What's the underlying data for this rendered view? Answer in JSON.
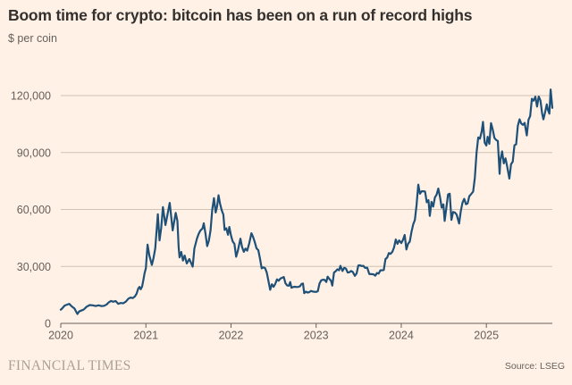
{
  "header": {
    "title": "Boom time for crypto: bitcoin has been on a run of record highs",
    "subtitle": "$ per coin"
  },
  "footer": {
    "brand": "FINANCIAL TIMES",
    "source": "Source: LSEG"
  },
  "colors": {
    "background": "#FFF1E5",
    "line": "#1F5078",
    "grid": "#CFC3B4",
    "axis": "#66605C",
    "text_primary": "#33302E",
    "text_secondary": "#66605C",
    "brand": "#A9A195"
  },
  "chart_data": {
    "type": "line",
    "title": "Boom time for crypto: bitcoin has been on a run of record highs",
    "ylabel": "$ per coin",
    "source": "LSEG",
    "grid": true,
    "legend": "none",
    "x_axis": {
      "start_year": 2020,
      "end": 5.775,
      "ticks": [
        {
          "t": 0,
          "label": "2020"
        },
        {
          "t": 1,
          "label": "2021"
        },
        {
          "t": 2,
          "label": "2022"
        },
        {
          "t": 3,
          "label": "2023"
        },
        {
          "t": 4,
          "label": "2024"
        },
        {
          "t": 5,
          "label": "2025"
        }
      ]
    },
    "y_axis": {
      "min": 0,
      "max": 120000,
      "ticks": [
        {
          "v": 0,
          "label": "0"
        },
        {
          "v": 30000,
          "label": "30,000"
        },
        {
          "v": 60000,
          "label": "60,000"
        },
        {
          "v": 90000,
          "label": "90,000"
        },
        {
          "v": 120000,
          "label": "120,000"
        }
      ]
    },
    "series": [
      {
        "name": "Bitcoin price, $ per coin",
        "points": [
          [
            0.0,
            7200
          ],
          [
            0.02,
            8050
          ],
          [
            0.045,
            9350
          ],
          [
            0.075,
            9900
          ],
          [
            0.1,
            10250
          ],
          [
            0.13,
            8900
          ],
          [
            0.16,
            7900
          ],
          [
            0.195,
            4950
          ],
          [
            0.215,
            6250
          ],
          [
            0.24,
            6750
          ],
          [
            0.27,
            7300
          ],
          [
            0.305,
            8800
          ],
          [
            0.34,
            9650
          ],
          [
            0.375,
            9500
          ],
          [
            0.41,
            9150
          ],
          [
            0.445,
            9500
          ],
          [
            0.48,
            9100
          ],
          [
            0.51,
            9250
          ],
          [
            0.54,
            10000
          ],
          [
            0.565,
            11100
          ],
          [
            0.59,
            11800
          ],
          [
            0.615,
            11400
          ],
          [
            0.645,
            11750
          ],
          [
            0.675,
            10300
          ],
          [
            0.705,
            10750
          ],
          [
            0.735,
            10600
          ],
          [
            0.765,
            11500
          ],
          [
            0.795,
            13050
          ],
          [
            0.82,
            13600
          ],
          [
            0.845,
            13300
          ],
          [
            0.87,
            14150
          ],
          [
            0.89,
            15600
          ],
          [
            0.91,
            18400
          ],
          [
            0.925,
            19200
          ],
          [
            0.94,
            18000
          ],
          [
            0.955,
            19400
          ],
          [
            0.97,
            22800
          ],
          [
            0.985,
            26500
          ],
          [
            1.0,
            29000
          ],
          [
            1.02,
            41500
          ],
          [
            1.04,
            36000
          ],
          [
            1.07,
            30800
          ],
          [
            1.09,
            34500
          ],
          [
            1.11,
            39500
          ],
          [
            1.14,
            57500
          ],
          [
            1.16,
            43700
          ],
          [
            1.18,
            50400
          ],
          [
            1.2,
            61200
          ],
          [
            1.23,
            51800
          ],
          [
            1.25,
            56300
          ],
          [
            1.28,
            63500
          ],
          [
            1.315,
            49000
          ],
          [
            1.35,
            58200
          ],
          [
            1.37,
            54000
          ],
          [
            1.385,
            40000
          ],
          [
            1.395,
            34800
          ],
          [
            1.415,
            37600
          ],
          [
            1.435,
            33100
          ],
          [
            1.455,
            35700
          ],
          [
            1.48,
            31600
          ],
          [
            1.51,
            33900
          ],
          [
            1.53,
            31900
          ],
          [
            1.55,
            29900
          ],
          [
            1.57,
            39500
          ],
          [
            1.6,
            44700
          ],
          [
            1.62,
            47200
          ],
          [
            1.64,
            48900
          ],
          [
            1.665,
            50000
          ],
          [
            1.68,
            52700
          ],
          [
            1.7,
            47300
          ],
          [
            1.72,
            40700
          ],
          [
            1.74,
            43600
          ],
          [
            1.76,
            49100
          ],
          [
            1.78,
            60000
          ],
          [
            1.8,
            66000
          ],
          [
            1.82,
            58400
          ],
          [
            1.835,
            61300
          ],
          [
            1.853,
            67500
          ],
          [
            1.87,
            63300
          ],
          [
            1.89,
            59700
          ],
          [
            1.91,
            57300
          ],
          [
            1.925,
            49200
          ],
          [
            1.945,
            50100
          ],
          [
            1.965,
            46700
          ],
          [
            1.98,
            50800
          ],
          [
            2.0,
            46200
          ],
          [
            2.02,
            43100
          ],
          [
            2.04,
            41900
          ],
          [
            2.06,
            35100
          ],
          [
            2.08,
            38200
          ],
          [
            2.11,
            44600
          ],
          [
            2.13,
            40100
          ],
          [
            2.15,
            37700
          ],
          [
            2.17,
            39400
          ],
          [
            2.19,
            38300
          ],
          [
            2.215,
            42400
          ],
          [
            2.24,
            47500
          ],
          [
            2.26,
            45500
          ],
          [
            2.28,
            42800
          ],
          [
            2.3,
            39500
          ],
          [
            2.32,
            38600
          ],
          [
            2.34,
            34100
          ],
          [
            2.36,
            29000
          ],
          [
            2.38,
            29500
          ],
          [
            2.4,
            29100
          ],
          [
            2.42,
            26750
          ],
          [
            2.46,
            17700
          ],
          [
            2.48,
            20600
          ],
          [
            2.5,
            19250
          ],
          [
            2.52,
            20800
          ],
          [
            2.54,
            23200
          ],
          [
            2.56,
            22450
          ],
          [
            2.58,
            23600
          ],
          [
            2.62,
            24400
          ],
          [
            2.64,
            21150
          ],
          [
            2.66,
            19950
          ],
          [
            2.68,
            19800
          ],
          [
            2.695,
            21800
          ],
          [
            2.71,
            18800
          ],
          [
            2.73,
            19150
          ],
          [
            2.75,
            19300
          ],
          [
            2.77,
            19150
          ],
          [
            2.79,
            19200
          ],
          [
            2.81,
            19550
          ],
          [
            2.83,
            20800
          ],
          [
            2.845,
            21000
          ],
          [
            2.86,
            15900
          ],
          [
            2.88,
            16700
          ],
          [
            2.9,
            16250
          ],
          [
            2.92,
            16450
          ],
          [
            2.94,
            17100
          ],
          [
            2.96,
            16750
          ],
          [
            2.98,
            16650
          ],
          [
            3.0,
            16550
          ],
          [
            3.02,
            16950
          ],
          [
            3.04,
            21000
          ],
          [
            3.06,
            22700
          ],
          [
            3.08,
            23000
          ],
          [
            3.1,
            22900
          ],
          [
            3.12,
            21800
          ],
          [
            3.135,
            24600
          ],
          [
            3.155,
            23450
          ],
          [
            3.175,
            22350
          ],
          [
            3.19,
            19900
          ],
          [
            3.21,
            26800
          ],
          [
            3.23,
            27500
          ],
          [
            3.25,
            28450
          ],
          [
            3.27,
            27950
          ],
          [
            3.285,
            30300
          ],
          [
            3.31,
            27600
          ],
          [
            3.33,
            29250
          ],
          [
            3.35,
            28900
          ],
          [
            3.37,
            26800
          ],
          [
            3.39,
            26900
          ],
          [
            3.41,
            27600
          ],
          [
            3.43,
            27100
          ],
          [
            3.455,
            25050
          ],
          [
            3.475,
            26300
          ],
          [
            3.495,
            30500
          ],
          [
            3.515,
            30600
          ],
          [
            3.535,
            30200
          ],
          [
            3.555,
            30300
          ],
          [
            3.575,
            29200
          ],
          [
            3.6,
            29300
          ],
          [
            3.625,
            26000
          ],
          [
            3.65,
            25950
          ],
          [
            3.675,
            25850
          ],
          [
            3.695,
            25150
          ],
          [
            3.715,
            26550
          ],
          [
            3.735,
            26200
          ],
          [
            3.755,
            27950
          ],
          [
            3.775,
            27950
          ],
          [
            3.795,
            28100
          ],
          [
            3.815,
            33900
          ],
          [
            3.835,
            34650
          ],
          [
            3.855,
            37050
          ],
          [
            3.875,
            36600
          ],
          [
            3.895,
            37700
          ],
          [
            3.915,
            40000
          ],
          [
            3.935,
            44200
          ],
          [
            3.955,
            41900
          ],
          [
            3.975,
            43700
          ],
          [
            4.0,
            42300
          ],
          [
            4.02,
            44000
          ],
          [
            4.04,
            46600
          ],
          [
            4.06,
            38900
          ],
          [
            4.08,
            42000
          ],
          [
            4.1,
            43050
          ],
          [
            4.12,
            48200
          ],
          [
            4.14,
            52100
          ],
          [
            4.16,
            54500
          ],
          [
            4.18,
            62400
          ],
          [
            4.2,
            73100
          ],
          [
            4.22,
            68300
          ],
          [
            4.24,
            69600
          ],
          [
            4.26,
            69600
          ],
          [
            4.28,
            69400
          ],
          [
            4.3,
            63800
          ],
          [
            4.32,
            64900
          ],
          [
            4.335,
            56600
          ],
          [
            4.355,
            64000
          ],
          [
            4.375,
            61500
          ],
          [
            4.395,
            66300
          ],
          [
            4.415,
            67800
          ],
          [
            4.435,
            71000
          ],
          [
            4.455,
            66600
          ],
          [
            4.475,
            61000
          ],
          [
            4.495,
            62700
          ],
          [
            4.51,
            54000
          ],
          [
            4.53,
            60800
          ],
          [
            4.55,
            67900
          ],
          [
            4.57,
            68300
          ],
          [
            4.59,
            54500
          ],
          [
            4.61,
            58700
          ],
          [
            4.63,
            58400
          ],
          [
            4.65,
            57300
          ],
          [
            4.68,
            52600
          ],
          [
            4.7,
            59200
          ],
          [
            4.72,
            63600
          ],
          [
            4.74,
            65600
          ],
          [
            4.76,
            62800
          ],
          [
            4.78,
            63200
          ],
          [
            4.8,
            67000
          ],
          [
            4.82,
            68000
          ],
          [
            4.845,
            69400
          ],
          [
            4.865,
            76700
          ],
          [
            4.885,
            89900
          ],
          [
            4.905,
            98000
          ],
          [
            4.925,
            97300
          ],
          [
            4.945,
            101200
          ],
          [
            4.96,
            106100
          ],
          [
            4.98,
            95200
          ],
          [
            5.0,
            93700
          ],
          [
            5.015,
            98300
          ],
          [
            5.035,
            94600
          ],
          [
            5.055,
            105500
          ],
          [
            5.075,
            102100
          ],
          [
            5.095,
            97700
          ],
          [
            5.115,
            96600
          ],
          [
            5.135,
            96100
          ],
          [
            5.155,
            78800
          ],
          [
            5.165,
            86000
          ],
          [
            5.185,
            90600
          ],
          [
            5.205,
            84300
          ],
          [
            5.225,
            86900
          ],
          [
            5.245,
            82600
          ],
          [
            5.27,
            76300
          ],
          [
            5.29,
            83800
          ],
          [
            5.31,
            85200
          ],
          [
            5.33,
            93800
          ],
          [
            5.35,
            94300
          ],
          [
            5.37,
            104100
          ],
          [
            5.39,
            107500
          ],
          [
            5.41,
            105300
          ],
          [
            5.43,
            104600
          ],
          [
            5.45,
            105600
          ],
          [
            5.475,
            99000
          ],
          [
            5.495,
            107200
          ],
          [
            5.515,
            109200
          ],
          [
            5.535,
            118300
          ],
          [
            5.555,
            117300
          ],
          [
            5.575,
            119400
          ],
          [
            5.595,
            114200
          ],
          [
            5.615,
            119500
          ],
          [
            5.635,
            117400
          ],
          [
            5.655,
            110500
          ],
          [
            5.67,
            107500
          ],
          [
            5.69,
            111200
          ],
          [
            5.71,
            115400
          ],
          [
            5.725,
            112300
          ],
          [
            5.74,
            110500
          ],
          [
            5.755,
            123200
          ],
          [
            5.775,
            113500
          ]
        ]
      }
    ]
  }
}
